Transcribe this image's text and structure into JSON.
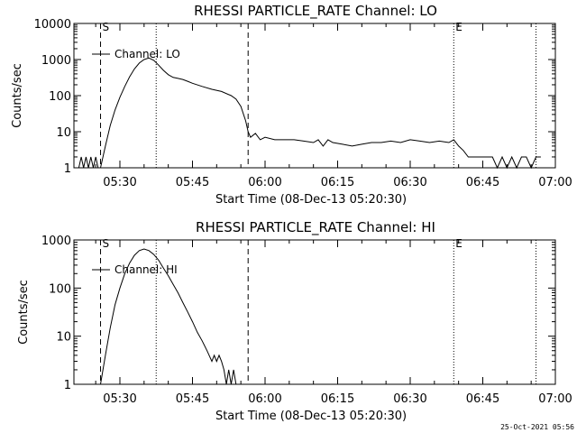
{
  "stamp": "25-Oct-2021 05:56",
  "chart_data": [
    {
      "type": "line",
      "title": "RHESSI PARTICLE_RATE Channel: LO",
      "xlabel": "Start Time (08-Dec-13 05:20:30)",
      "ylabel": "Counts/sec",
      "yscale": "log",
      "ylim": [
        1,
        10000
      ],
      "xlim": [
        "05:20:30",
        "07:00:00"
      ],
      "x_ticks": [
        "05:30",
        "05:45",
        "06:00",
        "06:15",
        "06:30",
        "06:45",
        "07:00"
      ],
      "y_ticks": [
        "1",
        "10",
        "100",
        "1000",
        "10000"
      ],
      "legend": "Channel: LO",
      "markers": [
        {
          "label": "S",
          "time": "05:26:00",
          "style": "dashed"
        },
        {
          "label": "",
          "time": "05:56:30",
          "style": "dashed"
        },
        {
          "label": "",
          "time": "05:37:30",
          "style": "dotted"
        },
        {
          "label": "E",
          "time": "06:39:00",
          "style": "dotted"
        },
        {
          "label": "",
          "time": "06:56:00",
          "style": "dotted"
        }
      ],
      "series": [
        {
          "values": [
            [
              "05:21:30",
              1
            ],
            [
              "05:22:00",
              2
            ],
            [
              "05:22:30",
              1
            ],
            [
              "05:23:00",
              2
            ],
            [
              "05:23:30",
              1
            ],
            [
              "05:24:00",
              2
            ],
            [
              "05:24:30",
              1
            ],
            [
              "05:25:00",
              2
            ],
            [
              "05:25:30",
              1
            ],
            [
              "05:26:00",
              1
            ],
            [
              "05:27:00",
              4
            ],
            [
              "05:28:00",
              15
            ],
            [
              "05:29:00",
              40
            ],
            [
              "05:30:00",
              90
            ],
            [
              "05:31:00",
              180
            ],
            [
              "05:32:00",
              330
            ],
            [
              "05:33:00",
              550
            ],
            [
              "05:34:00",
              800
            ],
            [
              "05:35:00",
              1000
            ],
            [
              "05:36:00",
              1100
            ],
            [
              "05:37:00",
              950
            ],
            [
              "05:38:00",
              700
            ],
            [
              "05:39:00",
              500
            ],
            [
              "05:40:00",
              380
            ],
            [
              "05:41:00",
              320
            ],
            [
              "05:42:00",
              300
            ],
            [
              "05:43:00",
              280
            ],
            [
              "05:44:00",
              250
            ],
            [
              "05:45:00",
              220
            ],
            [
              "05:47:00",
              180
            ],
            [
              "05:49:00",
              150
            ],
            [
              "05:51:00",
              130
            ],
            [
              "05:53:00",
              100
            ],
            [
              "05:54:00",
              80
            ],
            [
              "05:55:00",
              50
            ],
            [
              "05:56:00",
              20
            ],
            [
              "05:56:30",
              10
            ],
            [
              "05:57:00",
              7
            ],
            [
              "05:58:00",
              9
            ],
            [
              "05:59:00",
              6
            ],
            [
              "06:00:00",
              7
            ],
            [
              "06:02:00",
              6
            ],
            [
              "06:04:00",
              6
            ],
            [
              "06:06:00",
              6
            ],
            [
              "06:08:00",
              5.5
            ],
            [
              "06:10:00",
              5
            ],
            [
              "06:11:00",
              6
            ],
            [
              "06:12:00",
              4
            ],
            [
              "06:13:00",
              6
            ],
            [
              "06:14:00",
              5
            ],
            [
              "06:16:00",
              4.5
            ],
            [
              "06:18:00",
              4
            ],
            [
              "06:20:00",
              4.5
            ],
            [
              "06:22:00",
              5
            ],
            [
              "06:24:00",
              5
            ],
            [
              "06:26:00",
              5.5
            ],
            [
              "06:28:00",
              5
            ],
            [
              "06:30:00",
              6
            ],
            [
              "06:32:00",
              5.5
            ],
            [
              "06:34:00",
              5
            ],
            [
              "06:36:00",
              5.5
            ],
            [
              "06:38:00",
              5
            ],
            [
              "06:39:00",
              6
            ],
            [
              "06:40:00",
              4
            ],
            [
              "06:41:00",
              3
            ],
            [
              "06:42:00",
              2
            ],
            [
              "06:44:00",
              2
            ],
            [
              "06:46:00",
              2
            ],
            [
              "06:47:00",
              2
            ],
            [
              "06:48:00",
              1
            ],
            [
              "06:49:00",
              2
            ],
            [
              "06:50:00",
              1
            ],
            [
              "06:51:00",
              2
            ],
            [
              "06:52:00",
              1
            ],
            [
              "06:53:00",
              2
            ],
            [
              "06:54:00",
              2
            ],
            [
              "06:55:00",
              1
            ],
            [
              "06:56:00",
              2
            ],
            [
              "06:57:00",
              2
            ]
          ]
        }
      ]
    },
    {
      "type": "line",
      "title": "RHESSI PARTICLE_RATE Channel: HI",
      "xlabel": "Start Time (08-Dec-13 05:20:30)",
      "ylabel": "Counts/sec",
      "yscale": "log",
      "ylim": [
        1,
        1000
      ],
      "xlim": [
        "05:20:30",
        "07:00:00"
      ],
      "x_ticks": [
        "05:30",
        "05:45",
        "06:00",
        "06:15",
        "06:30",
        "06:45",
        "07:00"
      ],
      "y_ticks": [
        "1",
        "10",
        "100",
        "1000"
      ],
      "legend": "Channel: HI",
      "markers": [
        {
          "label": "S",
          "time": "05:26:00",
          "style": "dashed"
        },
        {
          "label": "",
          "time": "05:56:30",
          "style": "dashed"
        },
        {
          "label": "",
          "time": "05:37:30",
          "style": "dotted"
        },
        {
          "label": "E",
          "time": "06:39:00",
          "style": "dotted"
        },
        {
          "label": "",
          "time": "06:56:00",
          "style": "dotted"
        }
      ],
      "series": [
        {
          "values": [
            [
              "05:26:00",
              1
            ],
            [
              "05:27:00",
              4
            ],
            [
              "05:28:00",
              15
            ],
            [
              "05:29:00",
              45
            ],
            [
              "05:30:00",
              100
            ],
            [
              "05:31:00",
              200
            ],
            [
              "05:32:00",
              330
            ],
            [
              "05:33:00",
              480
            ],
            [
              "05:34:00",
              600
            ],
            [
              "05:35:00",
              650
            ],
            [
              "05:36:00",
              600
            ],
            [
              "05:37:00",
              500
            ],
            [
              "05:38:00",
              380
            ],
            [
              "05:39:00",
              260
            ],
            [
              "05:40:00",
              180
            ],
            [
              "05:41:00",
              120
            ],
            [
              "05:42:00",
              80
            ],
            [
              "05:43:00",
              50
            ],
            [
              "05:44:00",
              32
            ],
            [
              "05:45:00",
              20
            ],
            [
              "05:46:00",
              12
            ],
            [
              "05:47:00",
              8
            ],
            [
              "05:48:00",
              5
            ],
            [
              "05:49:00",
              3
            ],
            [
              "05:49:30",
              4
            ],
            [
              "05:50:00",
              3
            ],
            [
              "05:50:30",
              4
            ],
            [
              "05:51:00",
              3
            ],
            [
              "05:51:30",
              2
            ],
            [
              "05:52:00",
              1
            ],
            [
              "05:52:30",
              2
            ],
            [
              "05:53:00",
              1
            ],
            [
              "05:53:30",
              2
            ],
            [
              "05:54:00",
              1
            ]
          ]
        }
      ]
    }
  ]
}
